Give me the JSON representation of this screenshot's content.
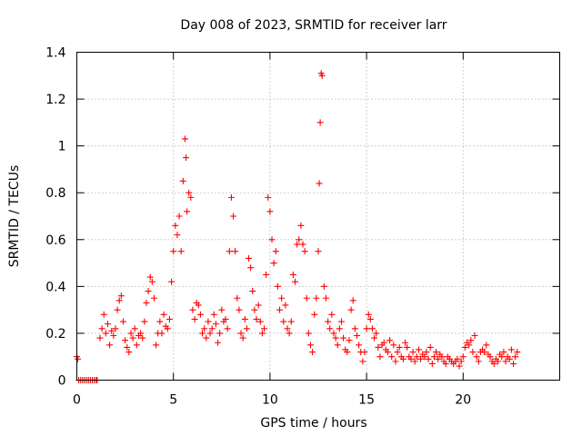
{
  "chart_data": {
    "type": "scatter",
    "title": "Day 008 of 2023, SRMTID for receiver larr",
    "xlabel": "GPS time / hours",
    "ylabel": "SRMTID / TECUs",
    "xlim": [
      0,
      25
    ],
    "ylim": [
      0,
      1.4
    ],
    "xticks": [
      0,
      5,
      10,
      15,
      20
    ],
    "xtick_labels": [
      "0",
      "5",
      "10",
      "15",
      "20"
    ],
    "yticks": [
      0,
      0.2,
      0.4,
      0.6,
      0.8,
      1.0,
      1.2,
      1.4
    ],
    "ytick_labels": [
      "0",
      "0.2",
      "0.4",
      "0.6",
      "0.8",
      "1",
      "1.2",
      "1.4"
    ],
    "grid": true,
    "marker": "+",
    "series": [
      {
        "name": "SRMTID",
        "color": "#ff0000",
        "x": [
          0.0,
          0.05,
          0.1,
          0.2,
          0.3,
          0.4,
          0.5,
          0.6,
          0.7,
          0.8,
          0.9,
          1.0,
          1.05,
          1.2,
          1.3,
          1.4,
          1.5,
          1.6,
          1.7,
          1.8,
          1.9,
          2.0,
          2.1,
          2.2,
          2.3,
          2.4,
          2.5,
          2.6,
          2.7,
          2.8,
          2.9,
          3.0,
          3.1,
          3.2,
          3.3,
          3.4,
          3.5,
          3.6,
          3.7,
          3.8,
          3.9,
          4.0,
          4.1,
          4.2,
          4.3,
          4.4,
          4.5,
          4.6,
          4.7,
          4.8,
          4.9,
          5.0,
          5.1,
          5.2,
          5.3,
          5.4,
          5.5,
          5.6,
          5.65,
          5.7,
          5.8,
          5.9,
          6.0,
          6.1,
          6.2,
          6.3,
          6.4,
          6.5,
          6.6,
          6.7,
          6.8,
          6.9,
          7.0,
          7.1,
          7.2,
          7.3,
          7.4,
          7.5,
          7.6,
          7.7,
          7.8,
          7.9,
          8.0,
          8.1,
          8.2,
          8.3,
          8.4,
          8.5,
          8.6,
          8.7,
          8.8,
          8.9,
          9.0,
          9.1,
          9.2,
          9.3,
          9.4,
          9.5,
          9.6,
          9.7,
          9.8,
          9.9,
          10.0,
          10.1,
          10.2,
          10.3,
          10.4,
          10.5,
          10.6,
          10.7,
          10.8,
          10.9,
          11.0,
          11.1,
          11.2,
          11.3,
          11.4,
          11.5,
          11.6,
          11.7,
          11.8,
          11.9,
          12.0,
          12.1,
          12.2,
          12.3,
          12.4,
          12.5,
          12.55,
          12.6,
          12.65,
          12.7,
          12.8,
          12.9,
          13.0,
          13.1,
          13.2,
          13.3,
          13.4,
          13.5,
          13.6,
          13.7,
          13.8,
          13.9,
          14.0,
          14.1,
          14.2,
          14.3,
          14.4,
          14.5,
          14.6,
          14.7,
          14.8,
          14.9,
          15.0,
          15.1,
          15.2,
          15.3,
          15.4,
          15.5,
          15.6,
          15.7,
          15.8,
          15.9,
          16.0,
          16.1,
          16.2,
          16.3,
          16.4,
          16.5,
          16.6,
          16.7,
          16.8,
          16.9,
          17.0,
          17.1,
          17.2,
          17.3,
          17.4,
          17.5,
          17.6,
          17.7,
          17.8,
          17.9,
          18.0,
          18.1,
          18.2,
          18.3,
          18.4,
          18.5,
          18.6,
          18.7,
          18.8,
          18.9,
          19.0,
          19.1,
          19.2,
          19.3,
          19.4,
          19.5,
          19.6,
          19.7,
          19.8,
          19.9,
          20.0,
          20.1,
          20.2,
          20.3,
          20.4,
          20.5,
          20.6,
          20.7,
          20.8,
          20.9,
          21.0,
          21.1,
          21.2,
          21.3,
          21.4,
          21.5,
          21.6,
          21.7,
          21.8,
          21.9,
          22.0,
          22.1,
          22.2,
          22.3,
          22.4,
          22.5,
          22.6,
          22.7,
          22.8
        ],
        "y": [
          0.1,
          0.09,
          0.0,
          0.0,
          0.0,
          0.0,
          0.0,
          0.0,
          0.0,
          0.0,
          0.0,
          0.0,
          0.0,
          0.18,
          0.22,
          0.28,
          0.2,
          0.24,
          0.15,
          0.21,
          0.19,
          0.22,
          0.3,
          0.34,
          0.36,
          0.25,
          0.17,
          0.14,
          0.12,
          0.2,
          0.18,
          0.22,
          0.15,
          0.19,
          0.2,
          0.18,
          0.25,
          0.33,
          0.38,
          0.44,
          0.42,
          0.35,
          0.15,
          0.2,
          0.25,
          0.2,
          0.28,
          0.23,
          0.22,
          0.26,
          0.42,
          0.55,
          0.66,
          0.62,
          0.7,
          0.55,
          0.85,
          1.03,
          0.95,
          0.72,
          0.8,
          0.78,
          0.3,
          0.26,
          0.33,
          0.32,
          0.28,
          0.2,
          0.22,
          0.18,
          0.25,
          0.2,
          0.22,
          0.28,
          0.24,
          0.16,
          0.2,
          0.3,
          0.25,
          0.26,
          0.22,
          0.55,
          0.78,
          0.7,
          0.55,
          0.35,
          0.3,
          0.2,
          0.18,
          0.26,
          0.22,
          0.52,
          0.48,
          0.38,
          0.3,
          0.26,
          0.32,
          0.25,
          0.2,
          0.22,
          0.45,
          0.78,
          0.72,
          0.6,
          0.5,
          0.55,
          0.4,
          0.3,
          0.35,
          0.25,
          0.32,
          0.22,
          0.2,
          0.25,
          0.45,
          0.42,
          0.58,
          0.6,
          0.66,
          0.58,
          0.55,
          0.35,
          0.2,
          0.15,
          0.12,
          0.28,
          0.35,
          0.55,
          0.84,
          1.1,
          1.31,
          1.3,
          0.4,
          0.35,
          0.25,
          0.22,
          0.28,
          0.2,
          0.18,
          0.15,
          0.22,
          0.25,
          0.18,
          0.13,
          0.12,
          0.17,
          0.3,
          0.34,
          0.22,
          0.19,
          0.15,
          0.12,
          0.08,
          0.12,
          0.22,
          0.28,
          0.26,
          0.22,
          0.18,
          0.2,
          0.14,
          0.1,
          0.15,
          0.16,
          0.13,
          0.12,
          0.17,
          0.1,
          0.15,
          0.08,
          0.12,
          0.14,
          0.1,
          0.09,
          0.16,
          0.14,
          0.1,
          0.09,
          0.12,
          0.08,
          0.1,
          0.13,
          0.09,
          0.11,
          0.1,
          0.12,
          0.09,
          0.14,
          0.07,
          0.1,
          0.12,
          0.09,
          0.11,
          0.1,
          0.08,
          0.07,
          0.1,
          0.09,
          0.08,
          0.07,
          0.08,
          0.09,
          0.06,
          0.08,
          0.1,
          0.14,
          0.16,
          0.15,
          0.17,
          0.12,
          0.19,
          0.1,
          0.08,
          0.12,
          0.13,
          0.12,
          0.15,
          0.11,
          0.1,
          0.08,
          0.07,
          0.09,
          0.08,
          0.11,
          0.1,
          0.12,
          0.08,
          0.1,
          0.09,
          0.13,
          0.07,
          0.1,
          0.12
        ]
      }
    ]
  }
}
